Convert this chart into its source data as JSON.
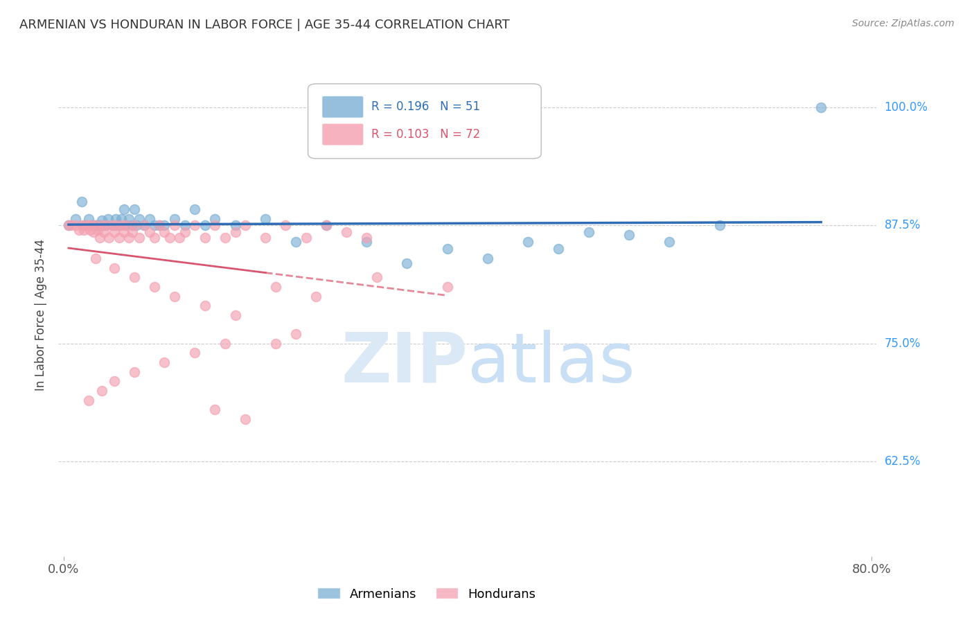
{
  "title": "ARMENIAN VS HONDURAN IN LABOR FORCE | AGE 35-44 CORRELATION CHART",
  "source": "Source: ZipAtlas.com",
  "ylabel": "In Labor Force | Age 35-44",
  "ytick_labels": [
    "100.0%",
    "87.5%",
    "75.0%",
    "62.5%"
  ],
  "ytick_values": [
    1.0,
    0.875,
    0.75,
    0.625
  ],
  "ylim": [
    0.525,
    1.035
  ],
  "xlim": [
    -0.005,
    0.805
  ],
  "armenian_R": 0.196,
  "armenian_N": 51,
  "honduran_R": 0.103,
  "honduran_N": 72,
  "armenian_color": "#7bafd4",
  "honduran_color": "#f4a0b0",
  "armenian_trend_color": "#2f6db5",
  "honduran_trend_color": "#d9546e",
  "background_color": "#ffffff",
  "grid_color": "#cccccc",
  "watermark_color": "#dbe9f7",
  "legend_armenian_label": "Armenians",
  "legend_honduran_label": "Hondurans",
  "title_color": "#333333",
  "axis_label_color": "#444444",
  "ytick_color": "#3399ff",
  "source_color": "#888888",
  "armenian_x": [
    0.005,
    0.012,
    0.018,
    0.021,
    0.025,
    0.028,
    0.03,
    0.032,
    0.034,
    0.036,
    0.038,
    0.04,
    0.042,
    0.044,
    0.048,
    0.05,
    0.052,
    0.055,
    0.057,
    0.06,
    0.062,
    0.065,
    0.068,
    0.07,
    0.072,
    0.075,
    0.08,
    0.085,
    0.09,
    0.095,
    0.1,
    0.11,
    0.12,
    0.13,
    0.14,
    0.15,
    0.17,
    0.2,
    0.23,
    0.26,
    0.3,
    0.34,
    0.38,
    0.42,
    0.46,
    0.49,
    0.52,
    0.56,
    0.6,
    0.65,
    0.75
  ],
  "armenian_y": [
    0.875,
    0.882,
    0.9,
    0.875,
    0.882,
    0.875,
    0.875,
    0.875,
    0.875,
    0.875,
    0.88,
    0.875,
    0.875,
    0.882,
    0.875,
    0.875,
    0.882,
    0.875,
    0.882,
    0.892,
    0.875,
    0.882,
    0.875,
    0.892,
    0.875,
    0.882,
    0.875,
    0.882,
    0.875,
    0.875,
    0.875,
    0.882,
    0.875,
    0.892,
    0.875,
    0.882,
    0.875,
    0.882,
    0.858,
    0.875,
    0.858,
    0.835,
    0.85,
    0.84,
    0.858,
    0.85,
    0.868,
    0.865,
    0.858,
    0.875,
    1.0
  ],
  "honduran_x": [
    0.005,
    0.008,
    0.012,
    0.015,
    0.018,
    0.02,
    0.022,
    0.024,
    0.026,
    0.028,
    0.03,
    0.032,
    0.034,
    0.036,
    0.038,
    0.04,
    0.042,
    0.045,
    0.048,
    0.05,
    0.052,
    0.055,
    0.058,
    0.06,
    0.062,
    0.065,
    0.068,
    0.07,
    0.075,
    0.08,
    0.085,
    0.09,
    0.095,
    0.1,
    0.105,
    0.11,
    0.115,
    0.12,
    0.13,
    0.14,
    0.15,
    0.16,
    0.17,
    0.18,
    0.2,
    0.22,
    0.24,
    0.26,
    0.28,
    0.3,
    0.032,
    0.05,
    0.07,
    0.09,
    0.11,
    0.14,
    0.17,
    0.21,
    0.25,
    0.31,
    0.38,
    0.23,
    0.21,
    0.16,
    0.13,
    0.1,
    0.07,
    0.05,
    0.038,
    0.025,
    0.15,
    0.18
  ],
  "honduran_y": [
    0.875,
    0.875,
    0.875,
    0.87,
    0.875,
    0.87,
    0.875,
    0.875,
    0.87,
    0.875,
    0.868,
    0.875,
    0.87,
    0.862,
    0.875,
    0.868,
    0.875,
    0.862,
    0.875,
    0.868,
    0.875,
    0.862,
    0.875,
    0.868,
    0.875,
    0.862,
    0.868,
    0.875,
    0.862,
    0.875,
    0.868,
    0.862,
    0.875,
    0.868,
    0.862,
    0.875,
    0.862,
    0.868,
    0.875,
    0.862,
    0.875,
    0.862,
    0.868,
    0.875,
    0.862,
    0.875,
    0.862,
    0.875,
    0.868,
    0.862,
    0.84,
    0.83,
    0.82,
    0.81,
    0.8,
    0.79,
    0.78,
    0.81,
    0.8,
    0.82,
    0.81,
    0.76,
    0.75,
    0.75,
    0.74,
    0.73,
    0.72,
    0.71,
    0.7,
    0.69,
    0.68,
    0.67
  ]
}
